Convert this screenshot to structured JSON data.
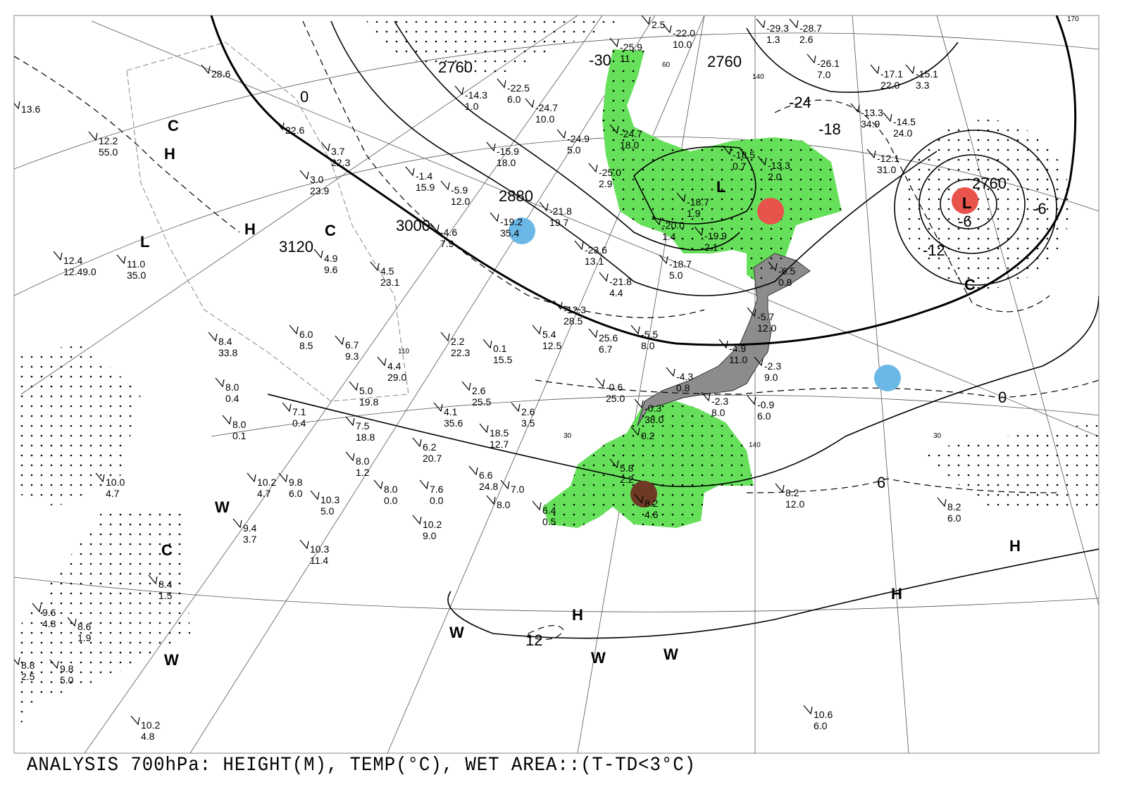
{
  "caption": "ANALYSIS 700hPa: HEIGHT(M), TEMP(°C), WET AREA::(T-TD<3°C)",
  "colors": {
    "wet_area": "#66e05a",
    "japan_land": "#8c8c8c",
    "marker_blue": "#6bb8e6",
    "marker_red": "#e8534c",
    "marker_brown": "#6e3a26",
    "contour": "#000000"
  },
  "pressure_systems": [
    "H",
    "H",
    "L",
    "C",
    "C",
    "W",
    "W",
    "C",
    "H",
    "W",
    "W",
    "W",
    "H",
    "H",
    "L",
    "L",
    "C"
  ],
  "height_labels": [
    "3120",
    "3000",
    "2880",
    "2760",
    "2760",
    "2760"
  ],
  "temp_labels": [
    "-30",
    "-24",
    "-18",
    "-12",
    "-6",
    "-6",
    "0",
    "0",
    "6",
    "12"
  ],
  "grid_labels": [
    "60",
    "30",
    "30",
    "140",
    "140",
    "110",
    "170"
  ],
  "stations": [
    [
      "13.6",
      ""
    ],
    [
      "12.2",
      "55.0"
    ],
    [
      "12.4",
      "12.49.0"
    ],
    [
      "11.0",
      "35.0"
    ],
    [
      "8.4",
      "33.8"
    ],
    [
      "8.0",
      "0.4"
    ],
    [
      "8.0",
      "0.1"
    ],
    [
      "7.1",
      "0.4"
    ],
    [
      "7.5",
      "18.8"
    ],
    [
      "8.0",
      "1.2"
    ],
    [
      "10.2",
      "4.7"
    ],
    [
      "9.8",
      "6.0"
    ],
    [
      "10.3",
      "5.0"
    ],
    [
      "8.0",
      "0.0"
    ],
    [
      "7.6",
      "0.0"
    ],
    [
      "10.2",
      "9.0"
    ],
    [
      "10.3",
      "11.4"
    ],
    [
      "9.4",
      "3.7"
    ],
    [
      "10.0",
      "4.7"
    ],
    [
      "8.4",
      "1.5"
    ],
    [
      "9.6",
      "4.8"
    ],
    [
      "8.6",
      "1.9"
    ],
    [
      "8.8",
      "2.5"
    ],
    [
      "9.8",
      "5.0"
    ],
    [
      "10.2",
      "4.8"
    ],
    [
      "4.1",
      "35.6"
    ],
    [
      "6.2",
      "20.7"
    ],
    [
      "6.6",
      "24.8"
    ],
    [
      "7.0",
      ""
    ],
    [
      "8.0",
      ""
    ],
    [
      "2.6",
      "25.5"
    ],
    [
      "2.6",
      "3.5"
    ],
    [
      "18.5",
      "12.7"
    ],
    [
      "2.2",
      "22.3"
    ],
    [
      "0.1",
      "15.5"
    ],
    [
      "5.4",
      "12.5"
    ],
    [
      "-5.5",
      "8.0"
    ],
    [
      "-12.3",
      "28.5"
    ],
    [
      "25.6",
      "6.7"
    ],
    [
      "-0.6",
      "25.0"
    ],
    [
      "-0.3",
      "38.0"
    ],
    [
      "0.2",
      ""
    ],
    [
      "5.8",
      "2.2"
    ],
    [
      "8.2",
      "4.6"
    ],
    [
      "6.4",
      "0.5"
    ],
    [
      "-2.3",
      "8.0"
    ],
    [
      "-4.3",
      "0.8"
    ],
    [
      "-4.9",
      "11.0"
    ],
    [
      "-2.3",
      "9.0"
    ],
    [
      "-0.9",
      "6.0"
    ],
    [
      "-5.7",
      "12.0"
    ],
    [
      "-6.5",
      "0.8"
    ],
    [
      "8.2",
      "12.0"
    ],
    [
      "8.2",
      "6.0"
    ],
    [
      "10.6",
      "6.0"
    ],
    [
      "-15.9",
      "18.0"
    ],
    [
      "-1.4",
      "15.9"
    ],
    [
      "-5.9",
      "12.0"
    ],
    [
      "-4.6",
      "7.9"
    ],
    [
      "-19.2",
      "35.4"
    ],
    [
      "-21.8",
      "19.7"
    ],
    [
      "-23.6",
      "13.1"
    ],
    [
      "-21.8",
      "4.4"
    ],
    [
      "-18.7",
      "5.0"
    ],
    [
      "-19.9",
      "2.1"
    ],
    [
      "-20.0",
      "1.4"
    ],
    [
      "-18.7",
      "1.9"
    ],
    [
      "-18.5",
      "0.7"
    ],
    [
      "-13.3",
      "2.0"
    ],
    [
      "-24.7",
      "18.0"
    ],
    [
      "-25.0",
      "2.9"
    ],
    [
      "-24.9",
      "5.0"
    ],
    [
      "-24.7",
      "10.0"
    ],
    [
      "-22.5",
      "6.0"
    ],
    [
      "-14.3",
      "1.0"
    ],
    [
      "-25.9",
      "11"
    ],
    [
      "-29.3",
      "1.3"
    ],
    [
      "-28.7",
      "2.6"
    ],
    [
      "-26.1",
      "7.0"
    ],
    [
      "-17.1",
      "22.0"
    ],
    [
      "-15.1",
      "3.3"
    ],
    [
      "-13.3",
      "34.9"
    ],
    [
      "-14.5",
      "24.0"
    ],
    [
      "-12.1",
      "31.0"
    ],
    [
      "2.5",
      ""
    ],
    [
      "-22.0",
      "10.0"
    ],
    [
      "6.0",
      "8.5"
    ],
    [
      "6.7",
      "9.3"
    ],
    [
      "4.4",
      "29.0"
    ],
    [
      "5.0",
      "19.8"
    ],
    [
      "4.9",
      "9.6"
    ],
    [
      "4.5",
      "23.1"
    ],
    [
      "3.0",
      "23.9"
    ],
    [
      "3.7",
      "22.3"
    ],
    [
      "22.6",
      ""
    ],
    [
      "28.6",
      ""
    ]
  ]
}
